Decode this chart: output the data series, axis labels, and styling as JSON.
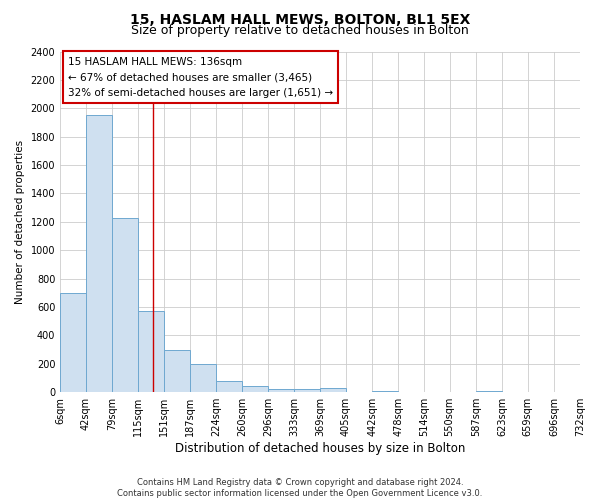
{
  "title": "15, HASLAM HALL MEWS, BOLTON, BL1 5EX",
  "subtitle": "Size of property relative to detached houses in Bolton",
  "xlabel": "Distribution of detached houses by size in Bolton",
  "ylabel": "Number of detached properties",
  "bin_edges": [
    6,
    42,
    79,
    115,
    151,
    187,
    224,
    260,
    296,
    333,
    369,
    405,
    442,
    478,
    514,
    550,
    587,
    623,
    659,
    696,
    732
  ],
  "bin_heights": [
    700,
    1950,
    1230,
    575,
    300,
    200,
    80,
    45,
    25,
    25,
    30,
    0,
    10,
    0,
    0,
    0,
    10,
    0,
    0,
    0
  ],
  "bar_color": "#cfe0f0",
  "bar_edge_color": "#6fa8d0",
  "ylim": [
    0,
    2400
  ],
  "yticks": [
    0,
    200,
    400,
    600,
    800,
    1000,
    1200,
    1400,
    1600,
    1800,
    2000,
    2200,
    2400
  ],
  "annotation_line1": "15 HASLAM HALL MEWS: 136sqm",
  "annotation_line2": "← 67% of detached houses are smaller (3,465)",
  "annotation_line3": "32% of semi-detached houses are larger (1,651) →",
  "property_size": 136,
  "footer_line1": "Contains HM Land Registry data © Crown copyright and database right 2024.",
  "footer_line2": "Contains public sector information licensed under the Open Government Licence v3.0.",
  "background_color": "#ffffff",
  "grid_color": "#cccccc",
  "title_fontsize": 10,
  "subtitle_fontsize": 9,
  "xlabel_fontsize": 8.5,
  "ylabel_fontsize": 7.5,
  "tick_fontsize": 7,
  "annotation_fontsize": 7.5,
  "footer_fontsize": 6
}
